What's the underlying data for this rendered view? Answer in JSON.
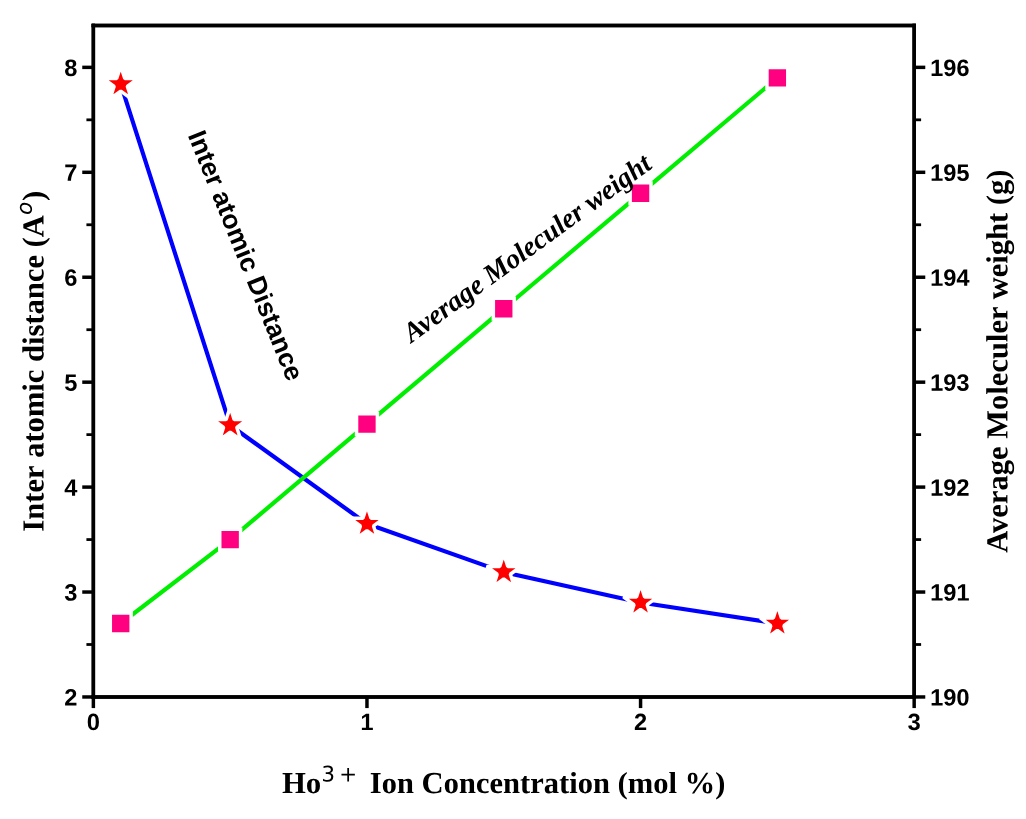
{
  "chart_data": {
    "type": "line",
    "xlabel": "Ho$^{3+}$ Ion Concentration (mol %)",
    "ylabel": "Inter atomic distance (A$^{o}$)",
    "y2label": "Average Moleculer weight (g)",
    "x": [
      0.1,
      0.5,
      1,
      1.5,
      2,
      2.5
    ],
    "series": [
      {
        "name": "Inter atomic Distance",
        "color": "#0000ff",
        "colors": [
          "#ff0000",
          "#ff0000",
          "#ff0000",
          "#ff0000",
          "#ff0000",
          "#ff0000"
        ],
        "marker": "star",
        "values": [
          7.84,
          4.59,
          3.65,
          3.19,
          2.9,
          2.7
        ]
      },
      {
        "name": "Average Moleculer weight",
        "color": "#00ee00",
        "colors": [
          "#ff0080",
          "#ff0080",
          "#ff0080",
          "#ff0080",
          "#ff0080",
          "#ff0080"
        ],
        "marker": "square",
        "axis": "y2",
        "values": [
          190.7,
          191.5,
          192.6,
          193.7,
          194.8,
          195.9
        ]
      }
    ],
    "xlim": [
      0,
      3
    ],
    "xticks": [
      0,
      1,
      2,
      3
    ],
    "ylim": [
      2,
      8.4
    ],
    "yticks": [
      2,
      3,
      4,
      5,
      6,
      7,
      8
    ],
    "y2lim": [
      190,
      196.4
    ],
    "y2ticks": [
      190,
      191,
      192,
      193,
      194,
      195,
      196
    ],
    "grid": false,
    "legend": false
  }
}
